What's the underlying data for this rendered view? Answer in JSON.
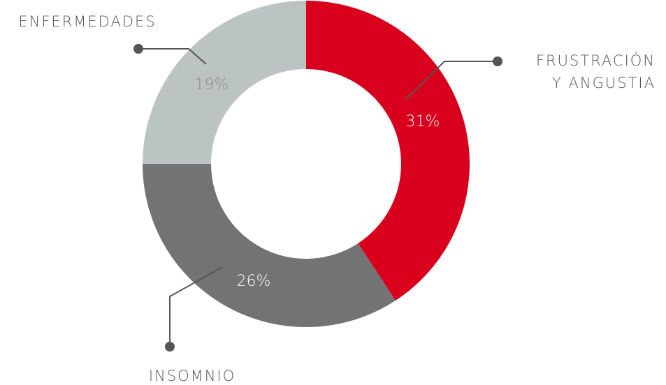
{
  "chart_data": {
    "type": "donut",
    "categories": [
      "FRUSTRACIÓN Y ANGUSTIA",
      "INSOMNIO",
      "ENFERMEDADES"
    ],
    "values": [
      31,
      26,
      19
    ],
    "value_labels": [
      "31%",
      "26%",
      "19%"
    ],
    "colors": [
      "#d9001d",
      "#737373",
      "#bcc4c3"
    ]
  }
}
